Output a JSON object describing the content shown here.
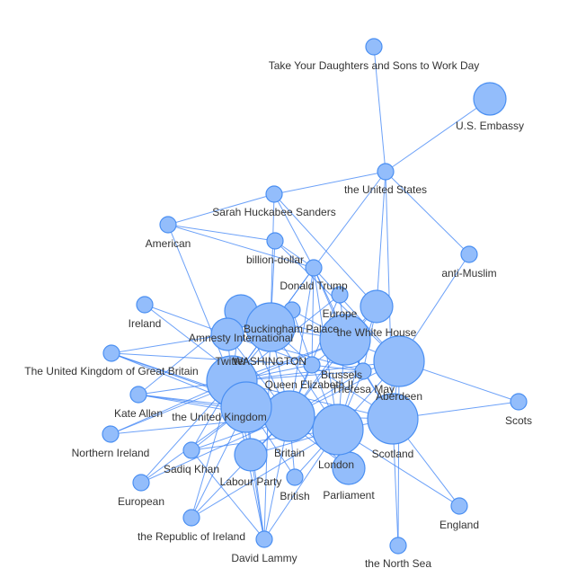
{
  "colors": {
    "node_fill": "#93bdfb",
    "node_stroke": "#4a8ff2",
    "edge": "#3b82f6",
    "label": "#333333"
  },
  "nodes": [
    {
      "id": "take_daughters",
      "label": "Take Your Daughters and Sons to Work Day"
    },
    {
      "id": "us_embassy",
      "label": "U.S. Embassy"
    },
    {
      "id": "united_states",
      "label": "the United States"
    },
    {
      "id": "sanders",
      "label": "Sarah Huckabee Sanders"
    },
    {
      "id": "american",
      "label": "American"
    },
    {
      "id": "billion_dollar",
      "label": "billion-dollar"
    },
    {
      "id": "anti_muslim",
      "label": "anti-Muslim"
    },
    {
      "id": "trump",
      "label": "Donald Trump"
    },
    {
      "id": "ireland",
      "label": "Ireland"
    },
    {
      "id": "europe",
      "label": "Europe"
    },
    {
      "id": "white_house",
      "label": "the White House"
    },
    {
      "id": "buckingham",
      "label": "Buckingham Palace"
    },
    {
      "id": "amnesty",
      "label": "Amnesty International"
    },
    {
      "id": "washington",
      "label": "WASHINGTON"
    },
    {
      "id": "uk",
      "label": "The United Kingdom of Great Britain"
    },
    {
      "id": "twitter",
      "label": "Twitter"
    },
    {
      "id": "brussels",
      "label": "Brussels"
    },
    {
      "id": "aberdeen",
      "label": "Aberdeen"
    },
    {
      "id": "queen",
      "label": "Queen Elizabeth II"
    },
    {
      "id": "may",
      "label": "Theresa May"
    },
    {
      "id": "kate_allen",
      "label": "Kate Allen"
    },
    {
      "id": "the_uk",
      "label": "the United Kingdom"
    },
    {
      "id": "scots",
      "label": "Scots"
    },
    {
      "id": "northern_ireland",
      "label": "Northern Ireland"
    },
    {
      "id": "london",
      "label": "London"
    },
    {
      "id": "britain",
      "label": "Britain"
    },
    {
      "id": "scotland",
      "label": "Scotland"
    },
    {
      "id": "sadiq",
      "label": "Sadiq Khan"
    },
    {
      "id": "labour",
      "label": "Labour Party"
    },
    {
      "id": "parliament",
      "label": "Parliament"
    },
    {
      "id": "british",
      "label": "British"
    },
    {
      "id": "european",
      "label": "European"
    },
    {
      "id": "england",
      "label": "England"
    },
    {
      "id": "republic_ireland",
      "label": "the Republic of Ireland"
    },
    {
      "id": "lammy",
      "label": "David Lammy"
    },
    {
      "id": "north_sea",
      "label": "the North Sea"
    },
    {
      "id": "hub",
      "label": ""
    }
  ]
}
